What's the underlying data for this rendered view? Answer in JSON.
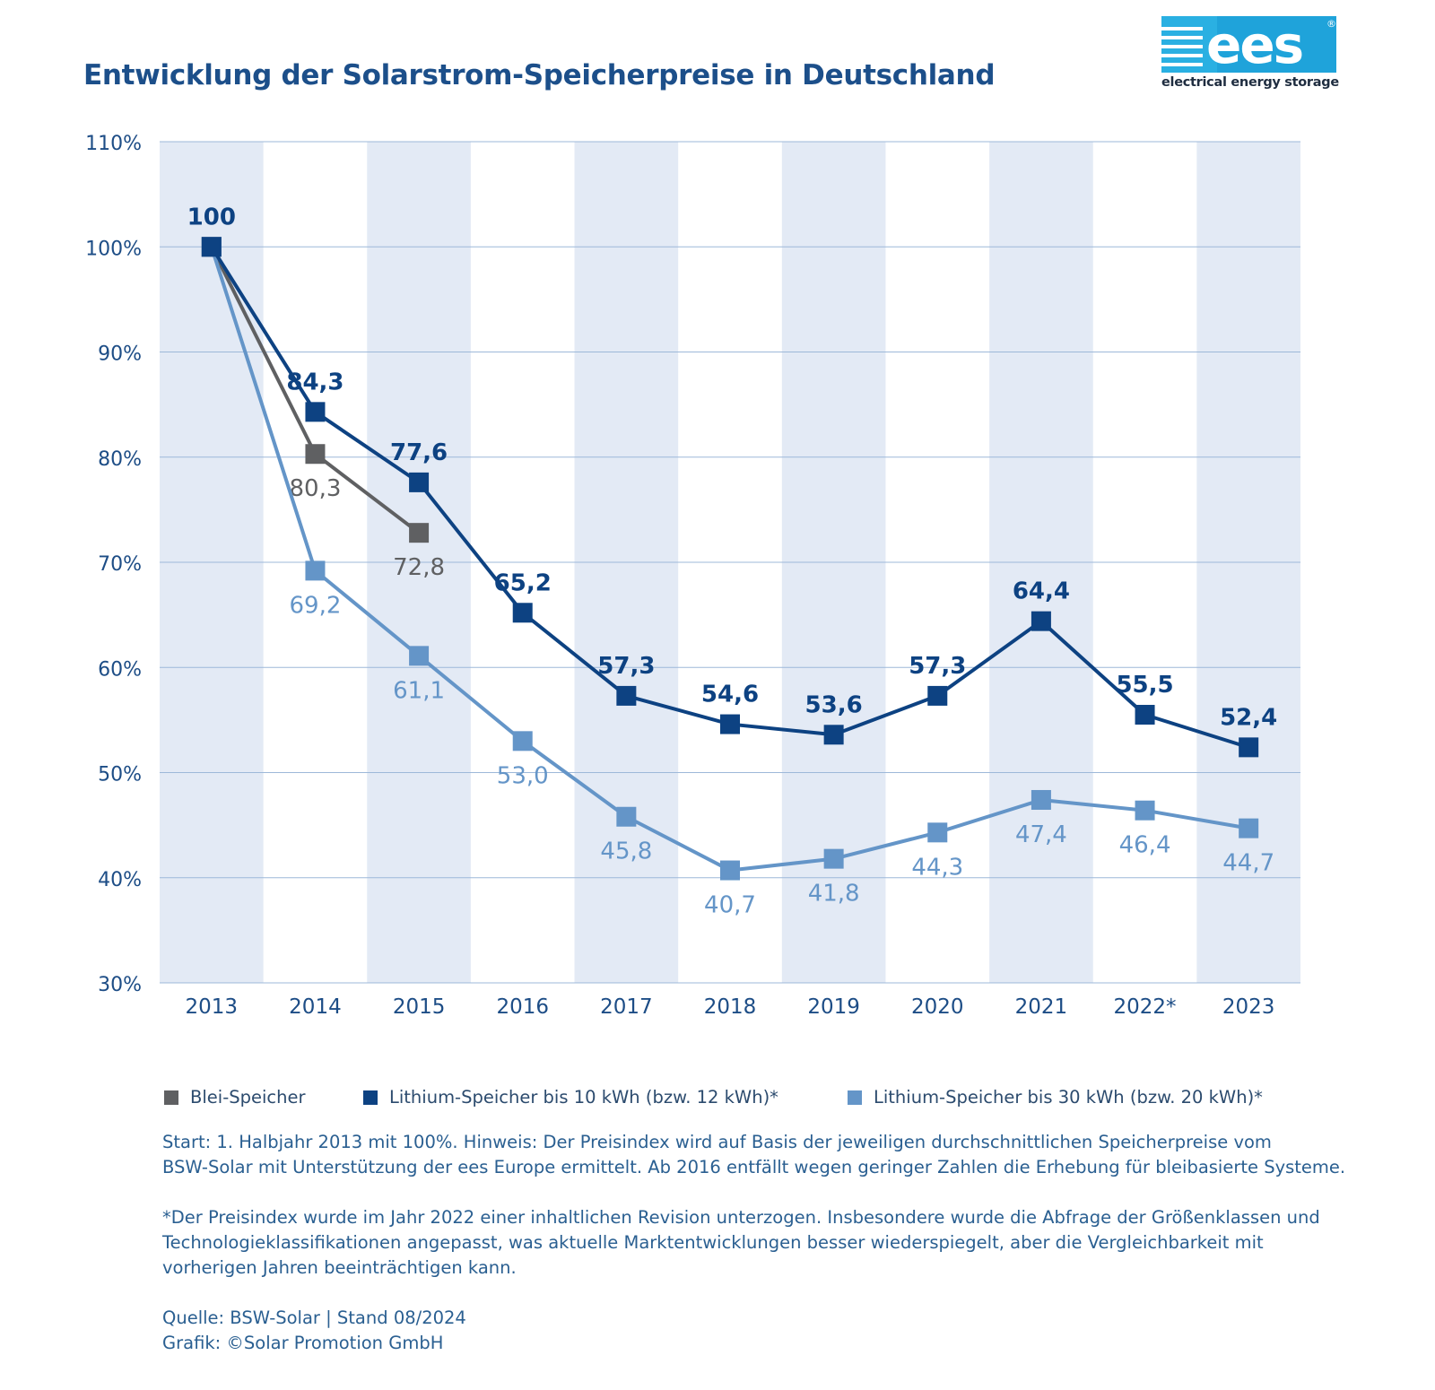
{
  "title": "Entwicklung der Solarstrom-Speicherpreise in Deutschland",
  "logo": {
    "text": "ees",
    "registered": "®",
    "caption": "electrical energy storage"
  },
  "chart_data": {
    "type": "line",
    "categories": [
      "2013",
      "2014",
      "2015",
      "2016",
      "2017",
      "2018",
      "2019",
      "2020",
      "2021",
      "2022*",
      "2023"
    ],
    "ylim": [
      30,
      110
    ],
    "yticks": [
      30,
      40,
      50,
      60,
      70,
      80,
      90,
      100,
      110
    ],
    "ytick_labels": [
      "30%",
      "40%",
      "50%",
      "60%",
      "70%",
      "80%",
      "90%",
      "100%",
      "110%"
    ],
    "grid": true,
    "series": [
      {
        "name": "Blei-Speicher",
        "color": "#5f6062",
        "values": [
          100,
          80.3,
          72.8,
          null,
          null,
          null,
          null,
          null,
          null,
          null,
          null
        ],
        "labels": [
          "",
          "80,3",
          "72,8",
          "",
          "",
          "",
          "",
          "",
          "",
          "",
          ""
        ]
      },
      {
        "name": "Lithium-Speicher bis 30 kWh (bzw. 20 kWh)*",
        "color": "#6495c8",
        "values": [
          100,
          69.2,
          61.1,
          53.0,
          45.8,
          40.7,
          41.8,
          44.3,
          47.4,
          46.4,
          44.7
        ],
        "labels": [
          "",
          "69,2",
          "61,1",
          "53,0",
          "45,8",
          "40,7",
          "41,8",
          "44,3",
          "47,4",
          "46,4",
          "44,7"
        ]
      },
      {
        "name": "Lithium-Speicher bis 10 kWh (bzw. 12 kWh)*",
        "color": "#0d4282",
        "values": [
          100,
          84.3,
          77.6,
          65.2,
          57.3,
          54.6,
          53.6,
          57.3,
          64.4,
          55.5,
          52.4
        ],
        "labels": [
          "100",
          "84,3",
          "77,6",
          "65,2",
          "57,3",
          "54,6",
          "53,6",
          "57,3",
          "64,4",
          "55,5",
          "52,4"
        ]
      }
    ],
    "legend": [
      {
        "label": "Blei-Speicher",
        "color": "#5f6062"
      },
      {
        "label": "Lithium-Speicher bis 10 kWh (bzw. 12 kWh)*",
        "color": "#0d4282"
      },
      {
        "label": "Lithium-Speicher bis 30 kWh (bzw. 20 kWh)*",
        "color": "#6495c8"
      }
    ],
    "band_color": "#e3eaf5",
    "grid_color": "#9db8d9"
  },
  "notes": {
    "start_line1": "Start: 1. Halbjahr 2013 mit 100%. Hinweis: Der Preisindex wird auf Basis der jeweiligen durchschnittlichen Speicherpreise vom",
    "start_line2": "BSW-Solar mit Unterstützung der ees Europe ermittelt. Ab 2016 entfällt wegen geringer Zahlen die Erhebung für bleibasierte Systeme.",
    "revision_line1": "*Der Preisindex wurde im Jahr 2022 einer inhaltlichen Revision unterzogen. Insbesondere wurde die Abfrage der Größenklassen und",
    "revision_line2": "Technologieklassifikationen angepasst, was aktuelle Marktentwicklungen besser wiederspiegelt, aber die Vergleichbarkeit mit",
    "revision_line3": "vorherigen Jahren beeinträchtigen kann.",
    "source": "Quelle: BSW-Solar | Stand 08/2024",
    "graphic": "Grafik: ©Solar Promotion GmbH"
  }
}
